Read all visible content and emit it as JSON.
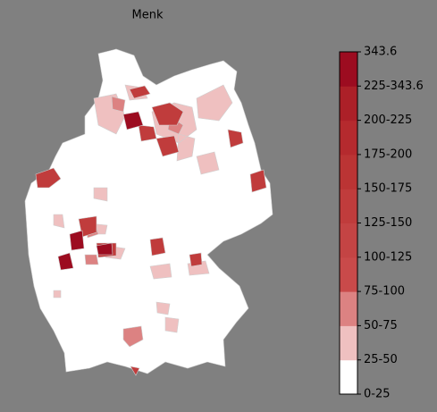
{
  "title": "Menk",
  "colorbar": {
    "labels": [
      "0-25",
      "25-50",
      "50-75",
      "75-100",
      "100-125",
      "125-150",
      "150-175",
      "175-200",
      "200-225",
      "225-343.6",
      "343.6"
    ],
    "colors": [
      "#ffffff",
      "#efc0c0",
      "#dc8282",
      "#c94a4a",
      "#c44444",
      "#c03c3c",
      "#bb3434",
      "#b52a2e",
      "#ac2028",
      "#9c0c20"
    ]
  }
}
